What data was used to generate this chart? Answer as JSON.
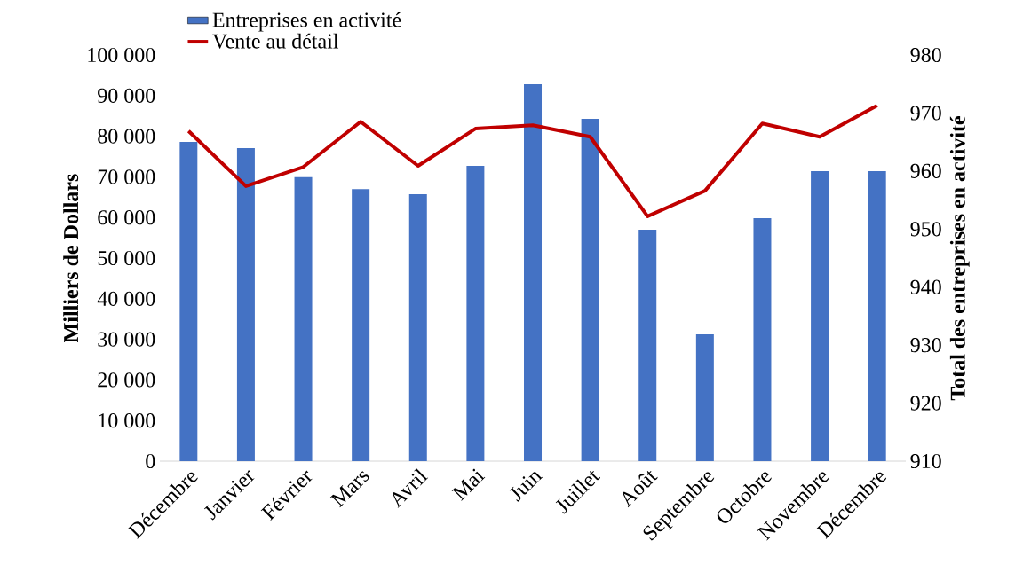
{
  "chart_data": {
    "type": "bar",
    "categories": [
      "Décembre",
      "Janvier",
      "Février",
      "Mars",
      "Avril",
      "Mai",
      "Juin",
      "Juillet",
      "Août",
      "Septembre",
      "Octobre",
      "Novembre",
      "Décembre"
    ],
    "series": [
      {
        "name": "Entreprises en activité",
        "axis": "y",
        "color": "#4472c4",
        "values": [
          78600,
          77100,
          69900,
          67000,
          65700,
          72700,
          92800,
          84300,
          57000,
          31200,
          59800,
          71400,
          71400
        ]
      },
      {
        "name": "Vente au détail",
        "type": "line",
        "axis": "y2",
        "color": "#c00000",
        "values": [
          966.9,
          957.4,
          960.7,
          968.5,
          960.9,
          967.3,
          967.9,
          965.9,
          952.2,
          956.6,
          968.2,
          965.9,
          971.3
        ]
      }
    ],
    "ylabel": "Milliers de Dollars",
    "y2label": "Total des entreprises en activité",
    "ylim": [
      0,
      100000
    ],
    "yticks": [
      0,
      {
        "value": 10000,
        "label": "10 000"
      },
      {
        "value": 20000,
        "label": "20 000"
      },
      {
        "value": 30000,
        "label": "30 000"
      },
      {
        "value": 40000,
        "label": "40 000"
      },
      {
        "value": 50000,
        "label": "50 000"
      },
      {
        "value": 60000,
        "label": "60 000"
      },
      {
        "value": 70000,
        "label": "70 000"
      },
      {
        "value": 80000,
        "label": "80 000"
      },
      {
        "value": 90000,
        "label": "90 000"
      },
      {
        "value": 100000,
        "label": "100 000"
      }
    ],
    "y2lim": [
      910,
      980
    ],
    "y2ticks": [
      910,
      920,
      930,
      940,
      950,
      960,
      970,
      980
    ],
    "legend": "top",
    "marker": "none",
    "line_style": "solid"
  }
}
